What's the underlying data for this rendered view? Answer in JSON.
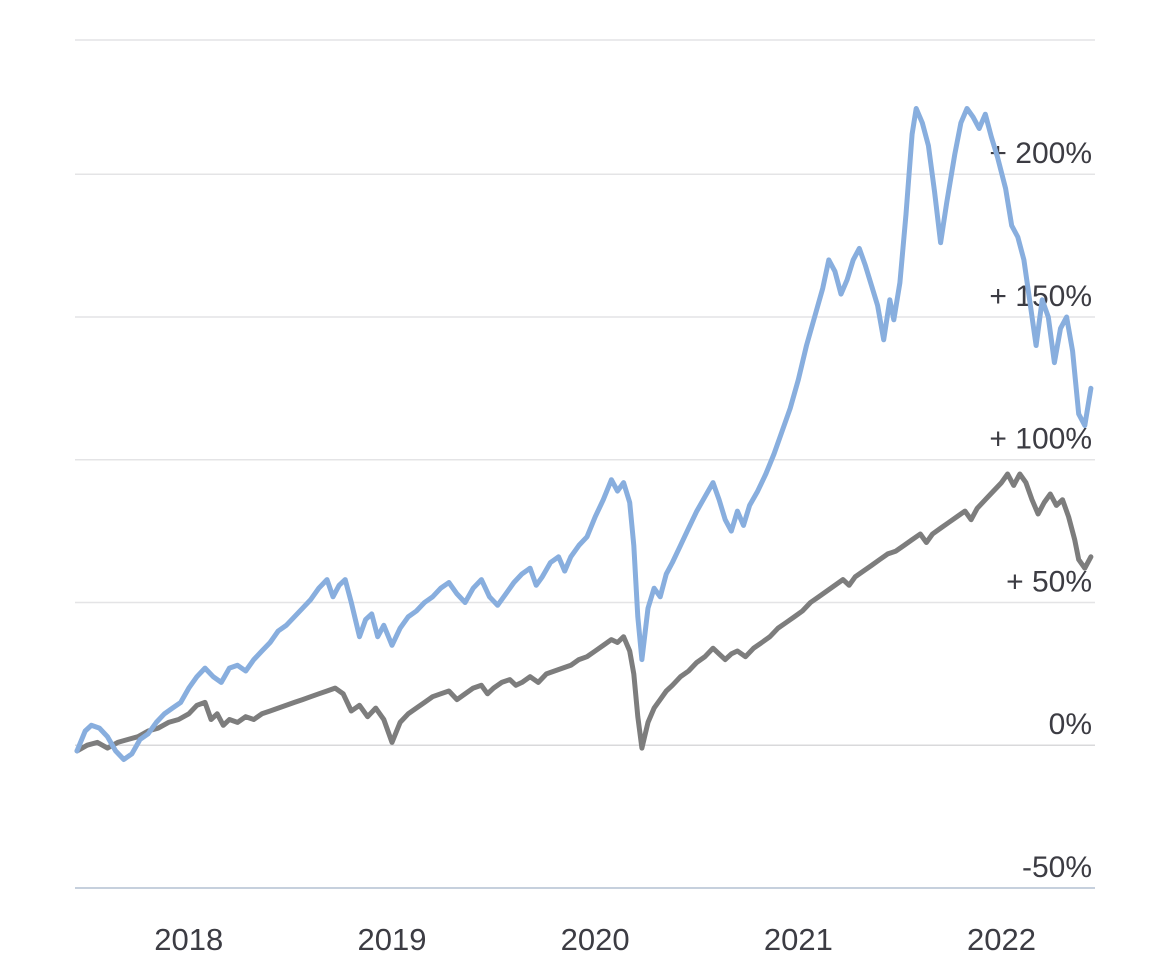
{
  "chart_data": {
    "type": "line",
    "title": "",
    "xlabel": "",
    "ylabel": "",
    "legend": "none",
    "grid": true,
    "xlim": [
      2017.44,
      2022.46
    ],
    "ylim": [
      -50,
      247
    ],
    "y_ticks": [
      {
        "value": 200,
        "label": "+ 200%"
      },
      {
        "value": 150,
        "label": "+ 150%"
      },
      {
        "value": 100,
        "label": "+ 100%"
      },
      {
        "value": 50,
        "label": "+ 50%"
      },
      {
        "value": 0,
        "label": "0%"
      },
      {
        "value": -50,
        "label": "-50%"
      }
    ],
    "x_ticks": [
      {
        "value": 2018,
        "label": "2018"
      },
      {
        "value": 2019,
        "label": "2019"
      },
      {
        "value": 2020,
        "label": "2020"
      },
      {
        "value": 2021,
        "label": "2021"
      },
      {
        "value": 2022,
        "label": "2022"
      }
    ],
    "colors": {
      "background": "#ffffff",
      "gridline": "#e4e4e6",
      "zero_line": "#d9d9db",
      "axis_line": "#c6d0dd",
      "tick_label": "#3c3c43",
      "series_blue": "#88aede",
      "series_gray": "#7d7d7d"
    },
    "series": [
      {
        "name": "blue-series",
        "color_key": "series_blue",
        "points": [
          [
            2017.45,
            -2
          ],
          [
            2017.49,
            5
          ],
          [
            2017.52,
            7
          ],
          [
            2017.56,
            6
          ],
          [
            2017.6,
            3
          ],
          [
            2017.64,
            -2
          ],
          [
            2017.68,
            -5
          ],
          [
            2017.72,
            -3
          ],
          [
            2017.76,
            2
          ],
          [
            2017.8,
            4
          ],
          [
            2017.84,
            8
          ],
          [
            2017.88,
            11
          ],
          [
            2017.92,
            13
          ],
          [
            2017.96,
            15
          ],
          [
            2018.0,
            20
          ],
          [
            2018.04,
            24
          ],
          [
            2018.08,
            27
          ],
          [
            2018.12,
            24
          ],
          [
            2018.16,
            22
          ],
          [
            2018.2,
            27
          ],
          [
            2018.24,
            28
          ],
          [
            2018.28,
            26
          ],
          [
            2018.32,
            30
          ],
          [
            2018.36,
            33
          ],
          [
            2018.4,
            36
          ],
          [
            2018.44,
            40
          ],
          [
            2018.48,
            42
          ],
          [
            2018.52,
            45
          ],
          [
            2018.56,
            48
          ],
          [
            2018.6,
            51
          ],
          [
            2018.64,
            55
          ],
          [
            2018.68,
            58
          ],
          [
            2018.71,
            52
          ],
          [
            2018.74,
            56
          ],
          [
            2018.77,
            58
          ],
          [
            2018.8,
            50
          ],
          [
            2018.84,
            38
          ],
          [
            2018.87,
            44
          ],
          [
            2018.9,
            46
          ],
          [
            2018.93,
            38
          ],
          [
            2018.96,
            42
          ],
          [
            2019.0,
            35
          ],
          [
            2019.04,
            41
          ],
          [
            2019.08,
            45
          ],
          [
            2019.12,
            47
          ],
          [
            2019.16,
            50
          ],
          [
            2019.2,
            52
          ],
          [
            2019.24,
            55
          ],
          [
            2019.28,
            57
          ],
          [
            2019.32,
            53
          ],
          [
            2019.36,
            50
          ],
          [
            2019.4,
            55
          ],
          [
            2019.44,
            58
          ],
          [
            2019.48,
            52
          ],
          [
            2019.52,
            49
          ],
          [
            2019.56,
            53
          ],
          [
            2019.6,
            57
          ],
          [
            2019.64,
            60
          ],
          [
            2019.68,
            62
          ],
          [
            2019.71,
            56
          ],
          [
            2019.74,
            59
          ],
          [
            2019.78,
            64
          ],
          [
            2019.82,
            66
          ],
          [
            2019.85,
            61
          ],
          [
            2019.88,
            66
          ],
          [
            2019.92,
            70
          ],
          [
            2019.96,
            73
          ],
          [
            2020.0,
            80
          ],
          [
            2020.04,
            86
          ],
          [
            2020.08,
            93
          ],
          [
            2020.11,
            89
          ],
          [
            2020.14,
            92
          ],
          [
            2020.17,
            85
          ],
          [
            2020.19,
            70
          ],
          [
            2020.21,
            45
          ],
          [
            2020.23,
            30
          ],
          [
            2020.26,
            48
          ],
          [
            2020.29,
            55
          ],
          [
            2020.32,
            52
          ],
          [
            2020.35,
            60
          ],
          [
            2020.38,
            64
          ],
          [
            2020.42,
            70
          ],
          [
            2020.46,
            76
          ],
          [
            2020.5,
            82
          ],
          [
            2020.54,
            87
          ],
          [
            2020.58,
            92
          ],
          [
            2020.61,
            86
          ],
          [
            2020.64,
            79
          ],
          [
            2020.67,
            75
          ],
          [
            2020.7,
            82
          ],
          [
            2020.73,
            77
          ],
          [
            2020.76,
            84
          ],
          [
            2020.8,
            89
          ],
          [
            2020.84,
            95
          ],
          [
            2020.88,
            102
          ],
          [
            2020.92,
            110
          ],
          [
            2020.96,
            118
          ],
          [
            2021.0,
            128
          ],
          [
            2021.04,
            140
          ],
          [
            2021.08,
            150
          ],
          [
            2021.12,
            160
          ],
          [
            2021.15,
            170
          ],
          [
            2021.18,
            166
          ],
          [
            2021.21,
            158
          ],
          [
            2021.24,
            163
          ],
          [
            2021.27,
            170
          ],
          [
            2021.3,
            174
          ],
          [
            2021.33,
            168
          ],
          [
            2021.36,
            161
          ],
          [
            2021.39,
            154
          ],
          [
            2021.42,
            142
          ],
          [
            2021.45,
            156
          ],
          [
            2021.47,
            149
          ],
          [
            2021.5,
            162
          ],
          [
            2021.53,
            186
          ],
          [
            2021.56,
            214
          ],
          [
            2021.58,
            223
          ],
          [
            2021.61,
            218
          ],
          [
            2021.64,
            210
          ],
          [
            2021.67,
            194
          ],
          [
            2021.7,
            176
          ],
          [
            2021.73,
            190
          ],
          [
            2021.77,
            207
          ],
          [
            2021.8,
            218
          ],
          [
            2021.83,
            223
          ],
          [
            2021.86,
            220
          ],
          [
            2021.89,
            216
          ],
          [
            2021.92,
            221
          ],
          [
            2021.95,
            213
          ],
          [
            2021.98,
            206
          ],
          [
            2022.02,
            195
          ],
          [
            2022.05,
            182
          ],
          [
            2022.08,
            178
          ],
          [
            2022.11,
            170
          ],
          [
            2022.14,
            155
          ],
          [
            2022.17,
            140
          ],
          [
            2022.2,
            156
          ],
          [
            2022.23,
            150
          ],
          [
            2022.26,
            134
          ],
          [
            2022.29,
            146
          ],
          [
            2022.32,
            150
          ],
          [
            2022.35,
            138
          ],
          [
            2022.38,
            116
          ],
          [
            2022.41,
            112
          ],
          [
            2022.44,
            125
          ]
        ]
      },
      {
        "name": "gray-series",
        "color_key": "series_gray",
        "points": [
          [
            2017.45,
            -2
          ],
          [
            2017.5,
            0
          ],
          [
            2017.55,
            1
          ],
          [
            2017.6,
            -1
          ],
          [
            2017.65,
            1
          ],
          [
            2017.7,
            2
          ],
          [
            2017.75,
            3
          ],
          [
            2017.8,
            5
          ],
          [
            2017.85,
            6
          ],
          [
            2017.9,
            8
          ],
          [
            2017.95,
            9
          ],
          [
            2018.0,
            11
          ],
          [
            2018.04,
            14
          ],
          [
            2018.08,
            15
          ],
          [
            2018.11,
            9
          ],
          [
            2018.14,
            11
          ],
          [
            2018.17,
            7
          ],
          [
            2018.2,
            9
          ],
          [
            2018.24,
            8
          ],
          [
            2018.28,
            10
          ],
          [
            2018.32,
            9
          ],
          [
            2018.36,
            11
          ],
          [
            2018.4,
            12
          ],
          [
            2018.44,
            13
          ],
          [
            2018.48,
            14
          ],
          [
            2018.52,
            15
          ],
          [
            2018.56,
            16
          ],
          [
            2018.6,
            17
          ],
          [
            2018.64,
            18
          ],
          [
            2018.68,
            19
          ],
          [
            2018.72,
            20
          ],
          [
            2018.76,
            18
          ],
          [
            2018.8,
            12
          ],
          [
            2018.84,
            14
          ],
          [
            2018.88,
            10
          ],
          [
            2018.92,
            13
          ],
          [
            2018.96,
            9
          ],
          [
            2019.0,
            1
          ],
          [
            2019.04,
            8
          ],
          [
            2019.08,
            11
          ],
          [
            2019.12,
            13
          ],
          [
            2019.16,
            15
          ],
          [
            2019.2,
            17
          ],
          [
            2019.24,
            18
          ],
          [
            2019.28,
            19
          ],
          [
            2019.32,
            16
          ],
          [
            2019.36,
            18
          ],
          [
            2019.4,
            20
          ],
          [
            2019.44,
            21
          ],
          [
            2019.47,
            18
          ],
          [
            2019.5,
            20
          ],
          [
            2019.54,
            22
          ],
          [
            2019.58,
            23
          ],
          [
            2019.61,
            21
          ],
          [
            2019.64,
            22
          ],
          [
            2019.68,
            24
          ],
          [
            2019.72,
            22
          ],
          [
            2019.76,
            25
          ],
          [
            2019.8,
            26
          ],
          [
            2019.84,
            27
          ],
          [
            2019.88,
            28
          ],
          [
            2019.92,
            30
          ],
          [
            2019.96,
            31
          ],
          [
            2020.0,
            33
          ],
          [
            2020.04,
            35
          ],
          [
            2020.08,
            37
          ],
          [
            2020.11,
            36
          ],
          [
            2020.14,
            38
          ],
          [
            2020.17,
            33
          ],
          [
            2020.19,
            25
          ],
          [
            2020.21,
            10
          ],
          [
            2020.23,
            -1
          ],
          [
            2020.26,
            8
          ],
          [
            2020.29,
            13
          ],
          [
            2020.32,
            16
          ],
          [
            2020.35,
            19
          ],
          [
            2020.38,
            21
          ],
          [
            2020.42,
            24
          ],
          [
            2020.46,
            26
          ],
          [
            2020.5,
            29
          ],
          [
            2020.54,
            31
          ],
          [
            2020.58,
            34
          ],
          [
            2020.61,
            32
          ],
          [
            2020.64,
            30
          ],
          [
            2020.67,
            32
          ],
          [
            2020.7,
            33
          ],
          [
            2020.74,
            31
          ],
          [
            2020.78,
            34
          ],
          [
            2020.82,
            36
          ],
          [
            2020.86,
            38
          ],
          [
            2020.9,
            41
          ],
          [
            2020.94,
            43
          ],
          [
            2020.98,
            45
          ],
          [
            2021.02,
            47
          ],
          [
            2021.06,
            50
          ],
          [
            2021.1,
            52
          ],
          [
            2021.14,
            54
          ],
          [
            2021.18,
            56
          ],
          [
            2021.22,
            58
          ],
          [
            2021.25,
            56
          ],
          [
            2021.28,
            59
          ],
          [
            2021.32,
            61
          ],
          [
            2021.36,
            63
          ],
          [
            2021.4,
            65
          ],
          [
            2021.44,
            67
          ],
          [
            2021.48,
            68
          ],
          [
            2021.52,
            70
          ],
          [
            2021.56,
            72
          ],
          [
            2021.6,
            74
          ],
          [
            2021.63,
            71
          ],
          [
            2021.66,
            74
          ],
          [
            2021.7,
            76
          ],
          [
            2021.74,
            78
          ],
          [
            2021.78,
            80
          ],
          [
            2021.82,
            82
          ],
          [
            2021.85,
            79
          ],
          [
            2021.88,
            83
          ],
          [
            2021.92,
            86
          ],
          [
            2021.96,
            89
          ],
          [
            2022.0,
            92
          ],
          [
            2022.03,
            95
          ],
          [
            2022.06,
            91
          ],
          [
            2022.09,
            95
          ],
          [
            2022.12,
            92
          ],
          [
            2022.15,
            86
          ],
          [
            2022.18,
            81
          ],
          [
            2022.21,
            85
          ],
          [
            2022.24,
            88
          ],
          [
            2022.27,
            84
          ],
          [
            2022.3,
            86
          ],
          [
            2022.33,
            80
          ],
          [
            2022.36,
            72
          ],
          [
            2022.38,
            65
          ],
          [
            2022.41,
            62
          ],
          [
            2022.44,
            66
          ]
        ]
      }
    ]
  }
}
